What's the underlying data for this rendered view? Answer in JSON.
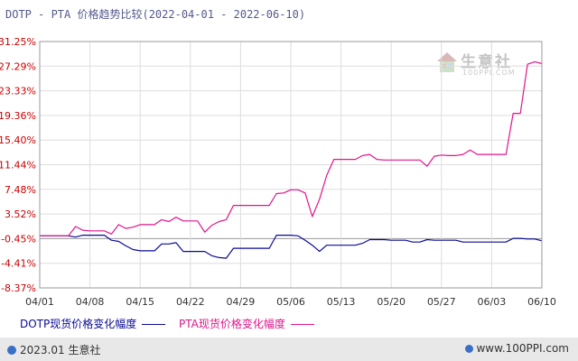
{
  "title": "DOTP - PTA 价格趋势比较(2022-04-01 - 2022-06-10)",
  "watermark": {
    "name": "生意社",
    "url": "100PPI.COM"
  },
  "footer": {
    "left": "2023.01 生意社",
    "right": "www.100PPI.com"
  },
  "colors": {
    "dotp": "#0a0a96",
    "pta": "#e0148c",
    "axis_label": "#cc0000",
    "grid": "#dddddd",
    "zero_line": "#999999"
  },
  "chart_data": {
    "type": "line",
    "title": "DOTP - PTA 价格趋势比较(2022-04-01 - 2022-06-10)",
    "xlabel": "",
    "ylabel": "",
    "x_labels": [
      "04/01",
      "04/08",
      "04/15",
      "04/22",
      "04/29",
      "05/06",
      "05/13",
      "05/20",
      "05/27",
      "06/03",
      "06/10"
    ],
    "y_ticks": [
      "31.25%",
      "27.29%",
      "23.33%",
      "19.36%",
      "15.40%",
      "11.44%",
      "7.48%",
      "3.52%",
      "-0.45%",
      "-4.41%",
      "-8.37%"
    ],
    "ylim": [
      -8.37,
      31.25
    ],
    "grid": true,
    "legend_position": "bottom",
    "series": [
      {
        "name": "DOTP现货价格变化幅度",
        "points": [
          [
            "04/01",
            0
          ],
          [
            "04/02",
            0
          ],
          [
            "04/03",
            0
          ],
          [
            "04/04",
            0
          ],
          [
            "04/05",
            0
          ],
          [
            "04/06",
            -0.2
          ],
          [
            "04/07",
            0.1
          ],
          [
            "04/08",
            0.1
          ],
          [
            "04/09",
            0.1
          ],
          [
            "04/10",
            0.1
          ],
          [
            "04/11",
            -0.7
          ],
          [
            "04/12",
            -0.9
          ],
          [
            "04/13",
            -1.6
          ],
          [
            "04/14",
            -2.2
          ],
          [
            "04/15",
            -2.4
          ],
          [
            "04/16",
            -2.4
          ],
          [
            "04/17",
            -2.4
          ],
          [
            "04/18",
            -1.3
          ],
          [
            "04/19",
            -1.3
          ],
          [
            "04/20",
            -1.1
          ],
          [
            "04/21",
            -2.5
          ],
          [
            "04/22",
            -2.5
          ],
          [
            "04/23",
            -2.5
          ],
          [
            "04/24",
            -2.5
          ],
          [
            "04/25",
            -3.2
          ],
          [
            "04/26",
            -3.5
          ],
          [
            "04/27",
            -3.6
          ],
          [
            "04/28",
            -2.0
          ],
          [
            "04/29",
            -2.0
          ],
          [
            "04/30",
            -2.0
          ],
          [
            "05/01",
            -2.0
          ],
          [
            "05/02",
            -2.0
          ],
          [
            "05/03",
            -2.0
          ],
          [
            "05/04",
            0.1
          ],
          [
            "05/05",
            0.1
          ],
          [
            "05/06",
            0.1
          ],
          [
            "05/07",
            0.0
          ],
          [
            "05/08",
            -0.7
          ],
          [
            "05/09",
            -1.5
          ],
          [
            "05/10",
            -2.5
          ],
          [
            "05/11",
            -1.5
          ],
          [
            "05/12",
            -1.5
          ],
          [
            "05/13",
            -1.5
          ],
          [
            "05/14",
            -1.5
          ],
          [
            "05/15",
            -1.5
          ],
          [
            "05/16",
            -1.2
          ],
          [
            "05/17",
            -0.6
          ],
          [
            "05/18",
            -0.6
          ],
          [
            "05/19",
            -0.6
          ],
          [
            "05/20",
            -0.7
          ],
          [
            "05/21",
            -0.7
          ],
          [
            "05/22",
            -0.7
          ],
          [
            "05/23",
            -1.0
          ],
          [
            "05/24",
            -1.0
          ],
          [
            "05/25",
            -0.6
          ],
          [
            "05/26",
            -0.7
          ],
          [
            "05/27",
            -0.7
          ],
          [
            "05/28",
            -0.7
          ],
          [
            "05/29",
            -0.7
          ],
          [
            "05/30",
            -1.0
          ],
          [
            "05/31",
            -1.0
          ],
          [
            "06/01",
            -1.0
          ],
          [
            "06/02",
            -1.0
          ],
          [
            "06/03",
            -1.0
          ],
          [
            "06/04",
            -1.0
          ],
          [
            "06/05",
            -1.0
          ],
          [
            "06/06",
            -0.4
          ],
          [
            "06/07",
            -0.4
          ],
          [
            "06/08",
            -0.5
          ],
          [
            "06/09",
            -0.5
          ],
          [
            "06/10",
            -0.8
          ]
        ]
      },
      {
        "name": "PTA现货价格变化幅度",
        "points": [
          [
            "04/01",
            0
          ],
          [
            "04/02",
            0
          ],
          [
            "04/03",
            0
          ],
          [
            "04/04",
            0
          ],
          [
            "04/05",
            0
          ],
          [
            "04/06",
            1.5
          ],
          [
            "04/07",
            0.9
          ],
          [
            "04/08",
            0.8
          ],
          [
            "04/09",
            0.8
          ],
          [
            "04/10",
            0.8
          ],
          [
            "04/11",
            0.3
          ],
          [
            "04/12",
            1.8
          ],
          [
            "04/13",
            1.2
          ],
          [
            "04/14",
            1.4
          ],
          [
            "04/15",
            1.8
          ],
          [
            "04/16",
            1.8
          ],
          [
            "04/17",
            1.8
          ],
          [
            "04/18",
            2.6
          ],
          [
            "04/19",
            2.3
          ],
          [
            "04/20",
            3.0
          ],
          [
            "04/21",
            2.4
          ],
          [
            "04/22",
            2.4
          ],
          [
            "04/23",
            2.4
          ],
          [
            "04/24",
            0.6
          ],
          [
            "04/25",
            1.7
          ],
          [
            "04/26",
            2.3
          ],
          [
            "04/27",
            2.6
          ],
          [
            "04/28",
            4.9
          ],
          [
            "04/29",
            4.9
          ],
          [
            "04/30",
            4.9
          ],
          [
            "05/01",
            4.9
          ],
          [
            "05/02",
            4.9
          ],
          [
            "05/03",
            4.9
          ],
          [
            "05/04",
            6.8
          ],
          [
            "05/05",
            6.9
          ],
          [
            "05/06",
            7.4
          ],
          [
            "05/07",
            7.4
          ],
          [
            "05/08",
            6.9
          ],
          [
            "05/09",
            3.1
          ],
          [
            "05/10",
            5.9
          ],
          [
            "05/11",
            9.7
          ],
          [
            "05/12",
            12.3
          ],
          [
            "05/13",
            12.3
          ],
          [
            "05/14",
            12.3
          ],
          [
            "05/15",
            12.3
          ],
          [
            "05/16",
            12.9
          ],
          [
            "05/17",
            13.1
          ],
          [
            "05/18",
            12.3
          ],
          [
            "05/19",
            12.2
          ],
          [
            "05/20",
            12.2
          ],
          [
            "05/21",
            12.2
          ],
          [
            "05/22",
            12.2
          ],
          [
            "05/23",
            12.2
          ],
          [
            "05/24",
            12.2
          ],
          [
            "05/25",
            11.2
          ],
          [
            "05/26",
            12.8
          ],
          [
            "05/27",
            13.0
          ],
          [
            "05/28",
            12.9
          ],
          [
            "05/29",
            12.9
          ],
          [
            "05/30",
            13.1
          ],
          [
            "05/31",
            13.8
          ],
          [
            "06/01",
            13.1
          ],
          [
            "06/02",
            13.1
          ],
          [
            "06/03",
            13.1
          ],
          [
            "06/04",
            13.1
          ],
          [
            "06/05",
            13.1
          ],
          [
            "06/06",
            19.7
          ],
          [
            "06/07",
            19.7
          ],
          [
            "06/08",
            27.6
          ],
          [
            "06/09",
            28.0
          ],
          [
            "06/10",
            27.7
          ]
        ]
      }
    ]
  }
}
